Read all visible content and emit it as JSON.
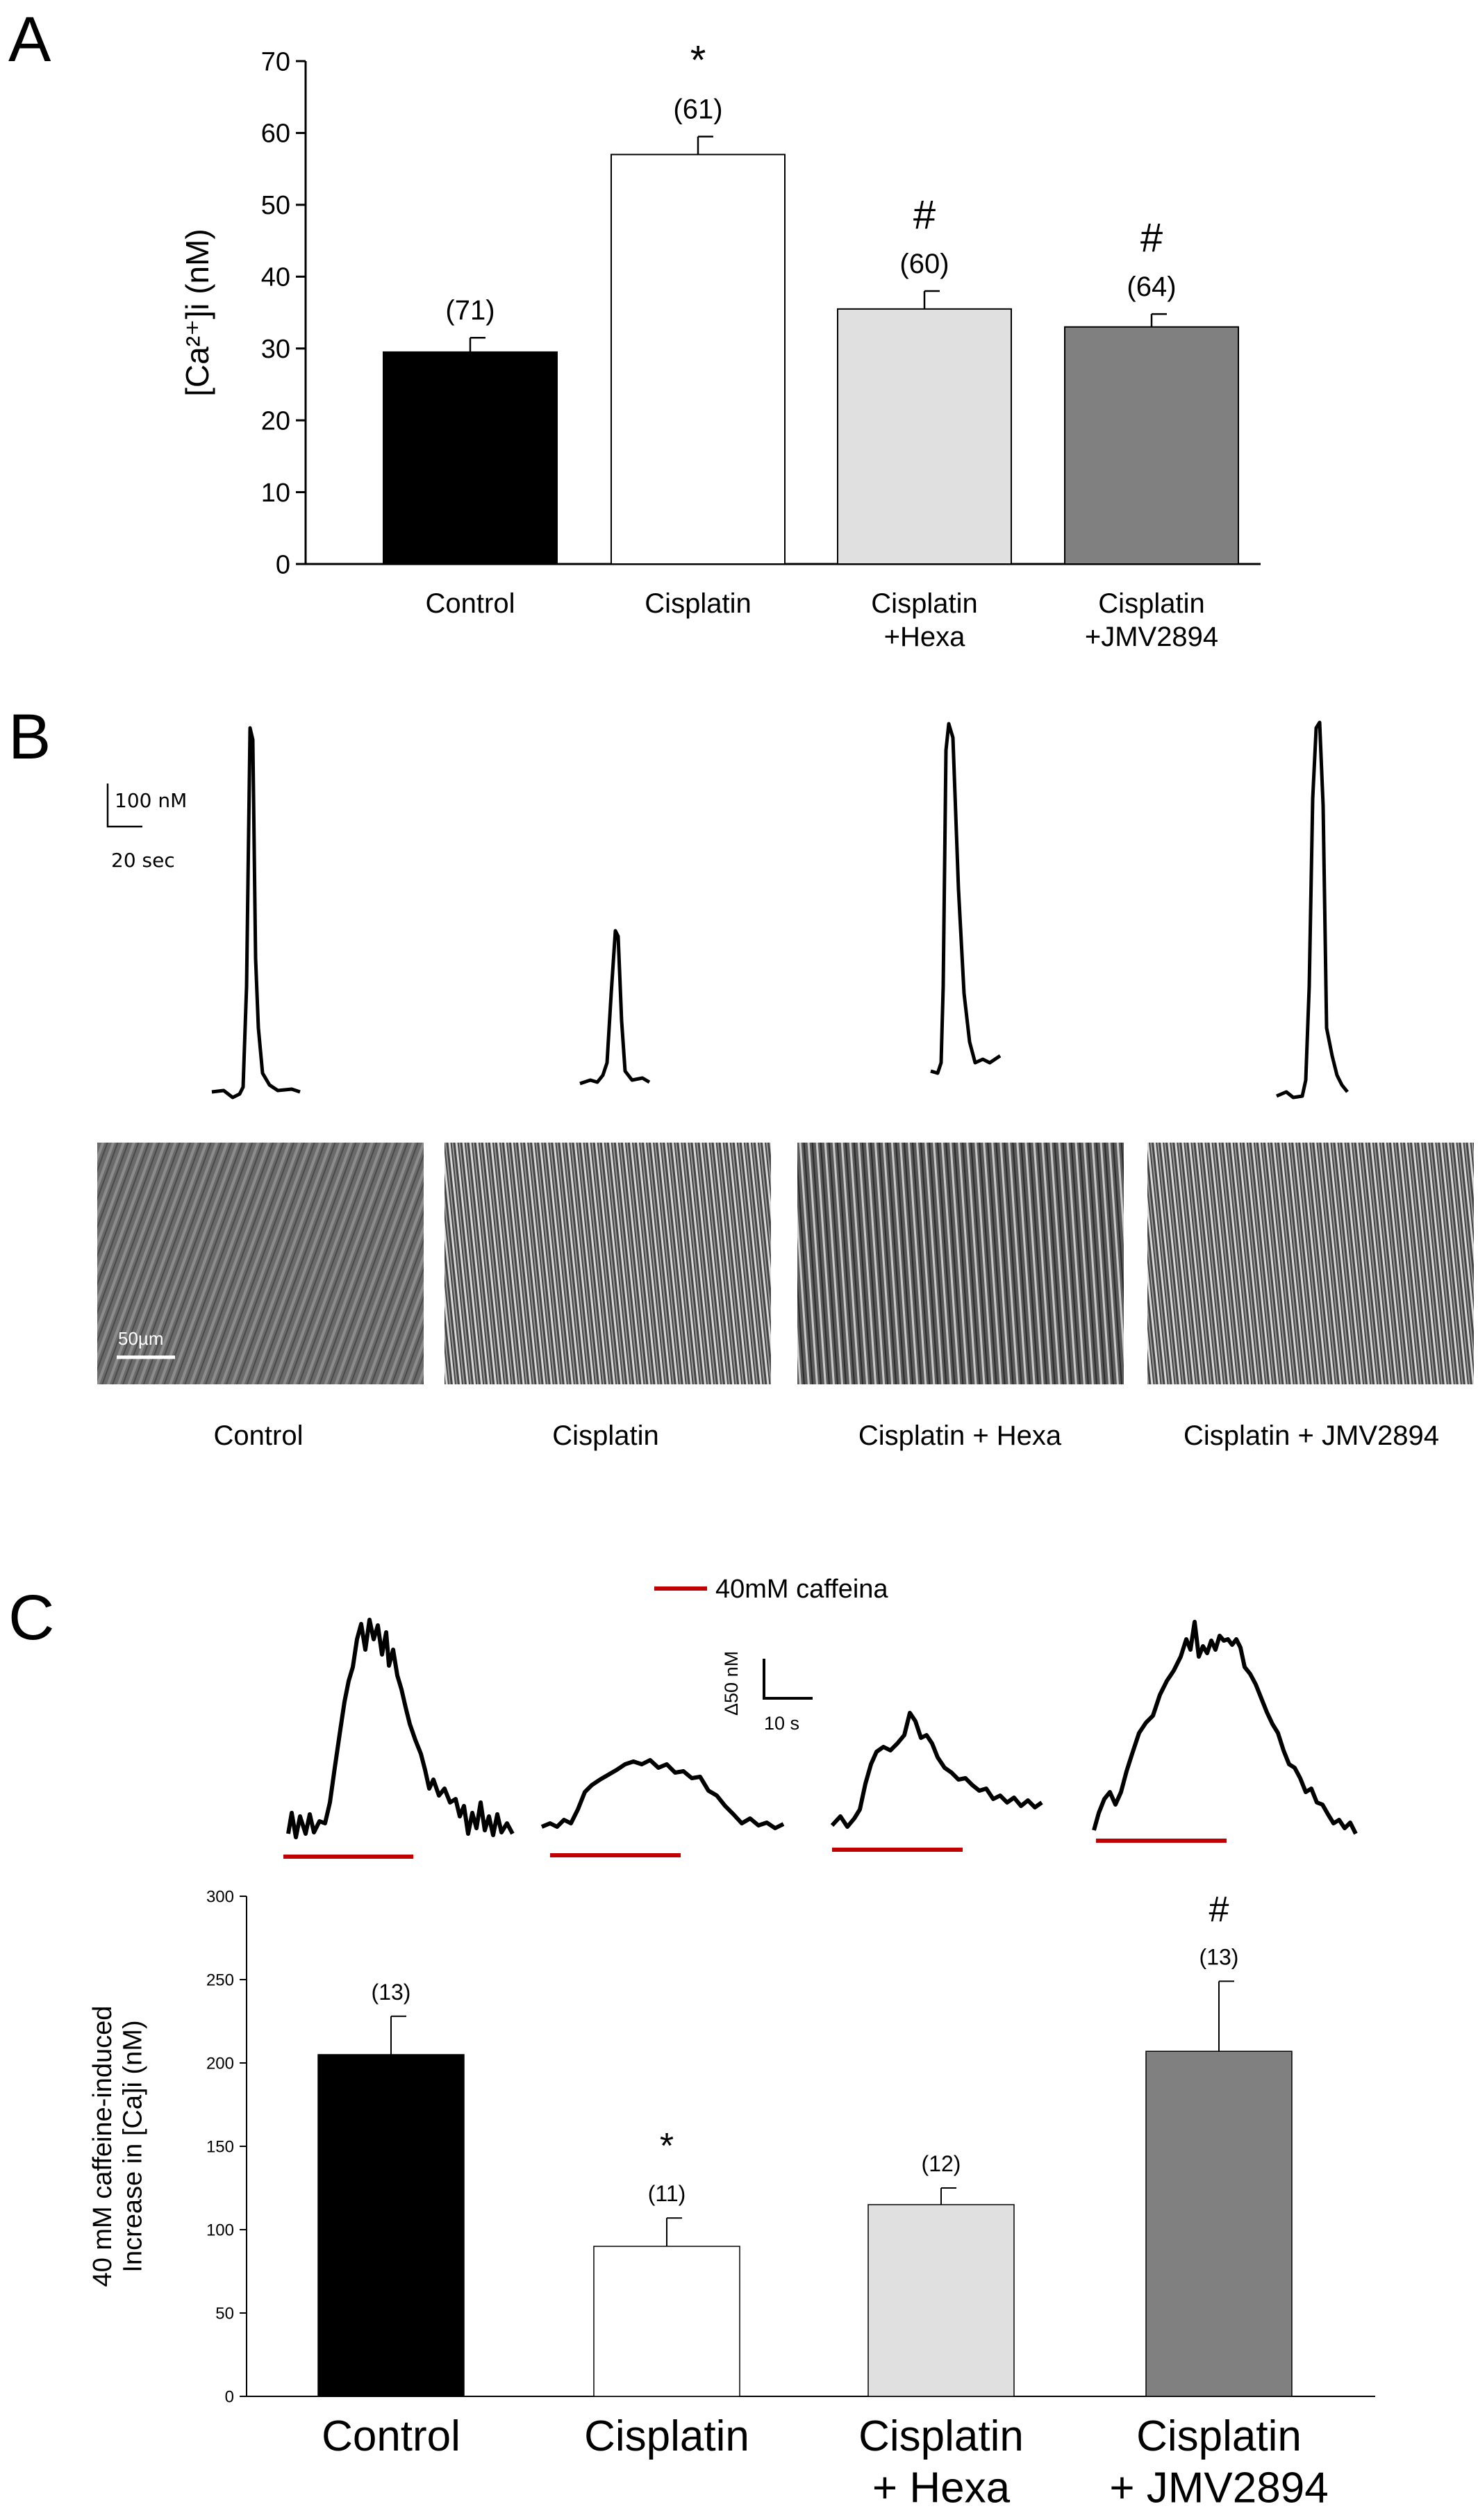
{
  "panels": {
    "a": {
      "letter": "A"
    },
    "b": {
      "letter": "B"
    },
    "c": {
      "letter": "C"
    }
  },
  "colors": {
    "control": "#000000",
    "cisplatin": "#ffffff",
    "hexa": "#e0e0e0",
    "jmv": "#808080",
    "caffeine_bar": "#c00000"
  },
  "panel_b": {
    "scale_amplitude": "100 nM",
    "scale_time": "20 sec",
    "scale_micro": "50µm",
    "image_labels": [
      "Control",
      "Cisplatin",
      "Cisplatin +  Hexa",
      "Cisplatin + JMV2894"
    ]
  },
  "panel_c_traces": {
    "legend": "40mM caffeina",
    "scale_amplitude": "Δ50 nM",
    "scale_time": "10 s"
  },
  "chart_data": [
    {
      "type": "bar",
      "panel": "A",
      "categories": [
        [
          "Control"
        ],
        [
          "Cisplatin"
        ],
        [
          "Cisplatin",
          "+Hexa"
        ],
        [
          "Cisplatin",
          "+JMV2894"
        ]
      ],
      "values": [
        29.5,
        57,
        35.5,
        33
      ],
      "errors": [
        2,
        2.5,
        2.5,
        1.8
      ],
      "n_labels": [
        "(71)",
        "(61)",
        "(60)",
        "(64)"
      ],
      "significance": [
        "",
        "*",
        "#",
        "#"
      ],
      "ylabel": "[Ca²⁺]i (nM)",
      "ylim": [
        0,
        70
      ],
      "yticks": [
        0,
        10,
        20,
        30,
        40,
        50,
        60,
        70
      ],
      "grid": false
    },
    {
      "type": "bar",
      "panel": "C",
      "categories": [
        [
          "Control"
        ],
        [
          "Cisplatin"
        ],
        [
          "Cisplatin",
          "+  Hexa"
        ],
        [
          "Cisplatin",
          "+  JMV2894"
        ]
      ],
      "values": [
        205,
        90,
        115,
        207
      ],
      "errors": [
        23,
        17,
        10,
        42
      ],
      "n_labels": [
        "(13)",
        "(11)",
        "(12)",
        "(13)"
      ],
      "significance": [
        "",
        "*",
        "",
        "#"
      ],
      "ylabel": [
        "40 mM caffeine-induced",
        "Increase in [Ca]i (nM)"
      ],
      "ylim": [
        0,
        300
      ],
      "yticks": [
        0,
        50,
        100,
        150,
        200,
        250,
        300
      ],
      "grid": false
    }
  ]
}
